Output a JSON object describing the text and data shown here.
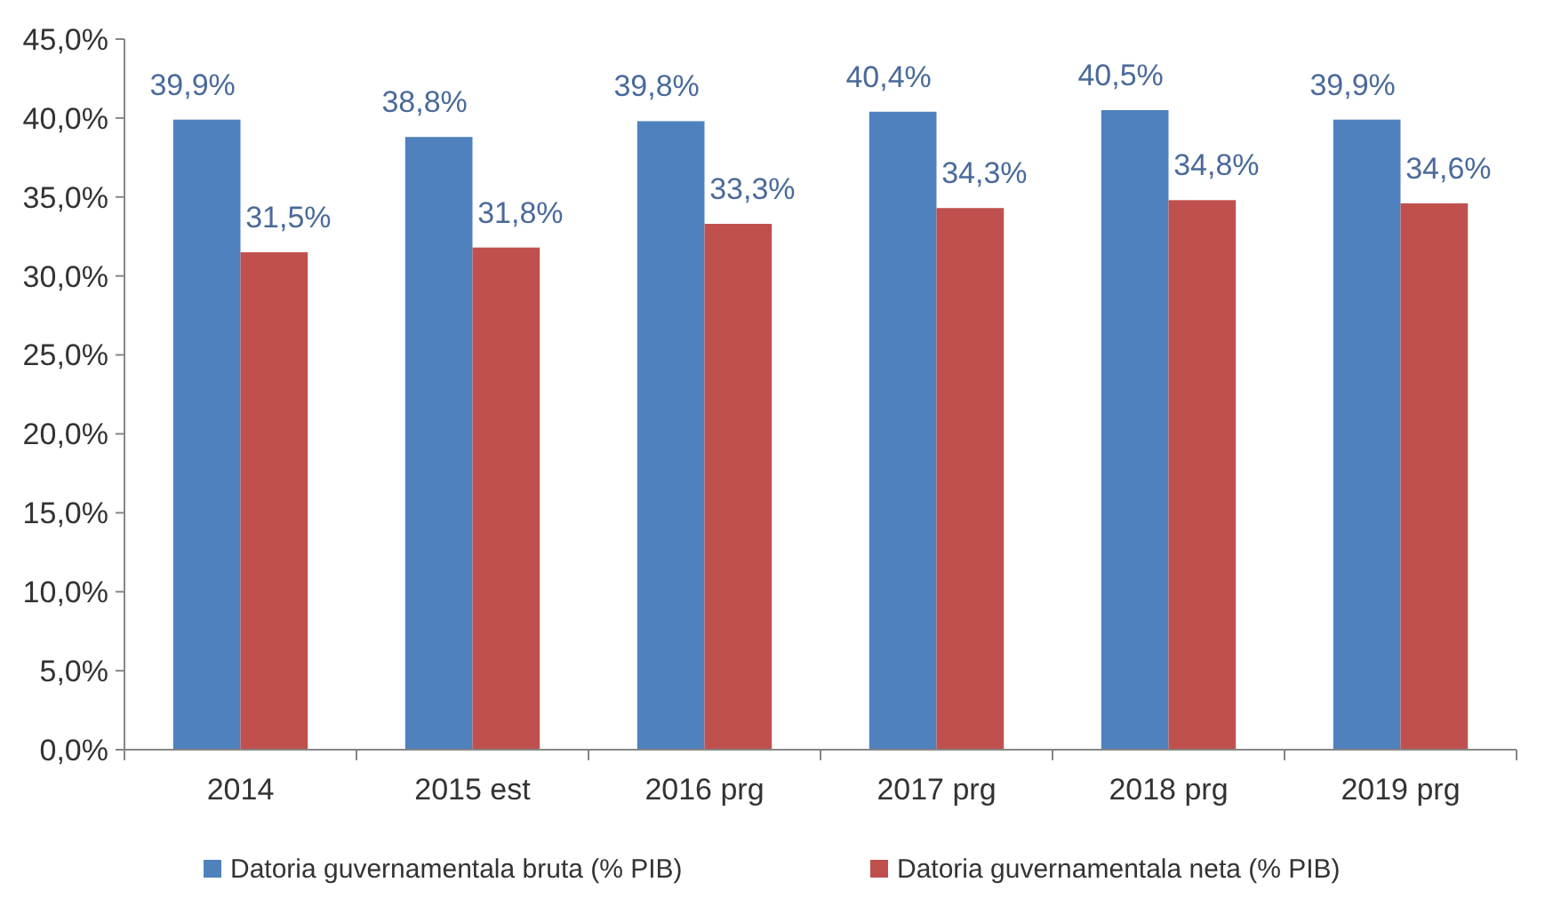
{
  "chart_data": {
    "type": "bar",
    "categories": [
      "2014",
      "2015 est",
      "2016 prg",
      "2017 prg",
      "2018 prg",
      "2019 prg"
    ],
    "series": [
      {
        "name": "Datoria guvernamentala bruta (% PIB)",
        "color": "#4f81bd",
        "values": [
          39.9,
          38.8,
          39.8,
          40.4,
          40.5,
          39.9
        ],
        "value_labels": [
          "39,9%",
          "38,8%",
          "39,8%",
          "40,4%",
          "40,5%",
          "39,9%"
        ]
      },
      {
        "name": "Datoria guvernamentala neta (% PIB)",
        "color": "#c0504d",
        "values": [
          31.5,
          31.8,
          33.3,
          34.3,
          34.8,
          34.6
        ],
        "value_labels": [
          "31,5%",
          "31,8%",
          "33,3%",
          "34,3%",
          "34,8%",
          "34,6%"
        ]
      }
    ],
    "ylim": [
      0,
      45
    ],
    "yticks": [
      {
        "value": 0,
        "label": "0,0%"
      },
      {
        "value": 5,
        "label": "5,0%"
      },
      {
        "value": 10,
        "label": "10,0%"
      },
      {
        "value": 15,
        "label": "15,0%"
      },
      {
        "value": 20,
        "label": "20,0%"
      },
      {
        "value": 25,
        "label": "25,0%"
      },
      {
        "value": 30,
        "label": "30,0%"
      },
      {
        "value": 35,
        "label": "35,0%"
      },
      {
        "value": 40,
        "label": "40,0%"
      },
      {
        "value": 45,
        "label": "45,0%"
      }
    ],
    "grid": false,
    "legend": "bottom"
  }
}
